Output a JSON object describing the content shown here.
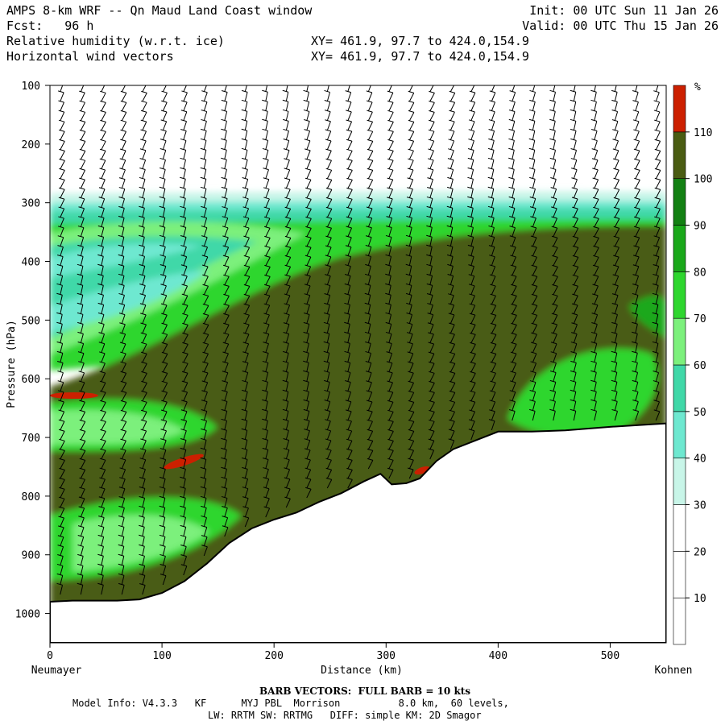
{
  "header": {
    "title": "AMPS 8-km WRF -- Qn Maud Land Coast window",
    "fcst": "Fcst:   96 h",
    "init": "Init: 00 UTC Sun 11 Jan 26",
    "valid": "Valid: 00 UTC Thu 15 Jan 26",
    "field1": "Relative humidity (w.r.t. ice)",
    "field2": "Horizontal wind vectors",
    "xy1": "XY= 461.9, 97.7 to 424.0,154.9",
    "xy2": "XY= 461.9, 97.7 to 424.0,154.9"
  },
  "footer": {
    "barb_note": "BARB VECTORS:  FULL BARB = 10 kts",
    "model_info": "Model Info: V4.3.3   KF      MYJ PBL  Morrison          8.0 km,  60 levels,",
    "model_info2": "LW: RRTM SW: RRTMG   DIFF: simple KM: 2D Smagor"
  },
  "chart_data": {
    "type": "heatmap",
    "title": "",
    "xlabel": "Distance (km)",
    "ylabel": "Pressure (hPa)",
    "x_start_label": "Neumayer",
    "x_end_label": "Kohnen",
    "xlim": [
      0,
      550
    ],
    "ylim": [
      1050,
      100
    ],
    "x_ticks": [
      0,
      100,
      200,
      300,
      400,
      500
    ],
    "y_ticks": [
      100,
      200,
      300,
      400,
      500,
      600,
      700,
      800,
      900,
      1000
    ],
    "colorbar": {
      "unit": "%",
      "levels": [
        10,
        20,
        30,
        40,
        50,
        60,
        70,
        80,
        90,
        100,
        110
      ],
      "colors": [
        "#ffffff",
        "#ffffff",
        "#ffffff",
        "#c8f5e8",
        "#6ee8d0",
        "#40d8a8",
        "#7cf07c",
        "#2ed62e",
        "#1aa81a",
        "#138013",
        "#4a5c12",
        "#cc2000"
      ]
    },
    "terrain_profile": {
      "x": [
        0,
        20,
        40,
        60,
        80,
        100,
        120,
        140,
        160,
        180,
        200,
        220,
        240,
        260,
        280,
        295,
        305,
        318,
        330,
        345,
        360,
        380,
        400,
        430,
        460,
        500,
        550
      ],
      "pressure": [
        980,
        978,
        978,
        978,
        976,
        965,
        945,
        915,
        880,
        855,
        840,
        828,
        810,
        795,
        775,
        762,
        780,
        778,
        770,
        740,
        720,
        705,
        690,
        690,
        688,
        682,
        676
      ]
    },
    "barb_note": "full barb = 10 kts"
  }
}
